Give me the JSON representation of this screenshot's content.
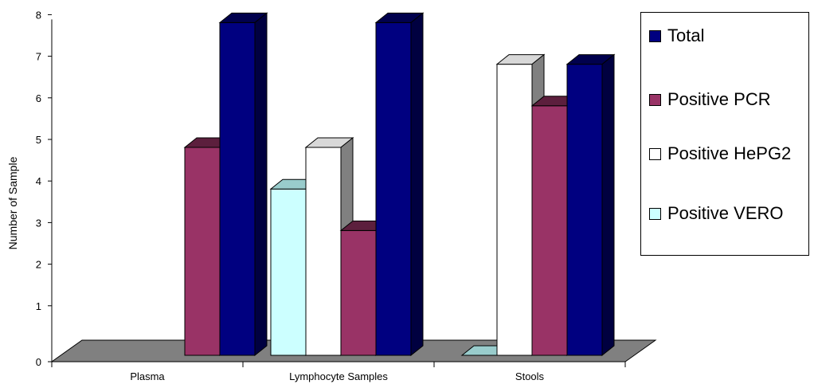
{
  "chart_data": {
    "type": "bar",
    "title": "",
    "xlabel": "",
    "ylabel": "Number of Sample",
    "ylim": [
      0,
      8
    ],
    "yticks": [
      "0",
      "1",
      "2",
      "3",
      "4",
      "5",
      "6",
      "7",
      "8"
    ],
    "categories": [
      "Plasma",
      "Lymphocyte Samples",
      "Stools"
    ],
    "series": [
      {
        "name": "Positive VERO",
        "color": "#ccffff",
        "values": [
          0,
          4,
          0
        ]
      },
      {
        "name": "Positive HePG2",
        "color": "#ffffff",
        "values": [
          0,
          5,
          7
        ]
      },
      {
        "name": "Positive PCR",
        "color": "#993366",
        "values": [
          5,
          3,
          6
        ]
      },
      {
        "name": "Total",
        "color": "#000080",
        "values": [
          8,
          8,
          7
        ]
      }
    ],
    "grid": false,
    "legend_position": "right",
    "legend_order": [
      "Total",
      "Positive PCR",
      "Positive HePG2",
      "Positive VERO"
    ]
  }
}
